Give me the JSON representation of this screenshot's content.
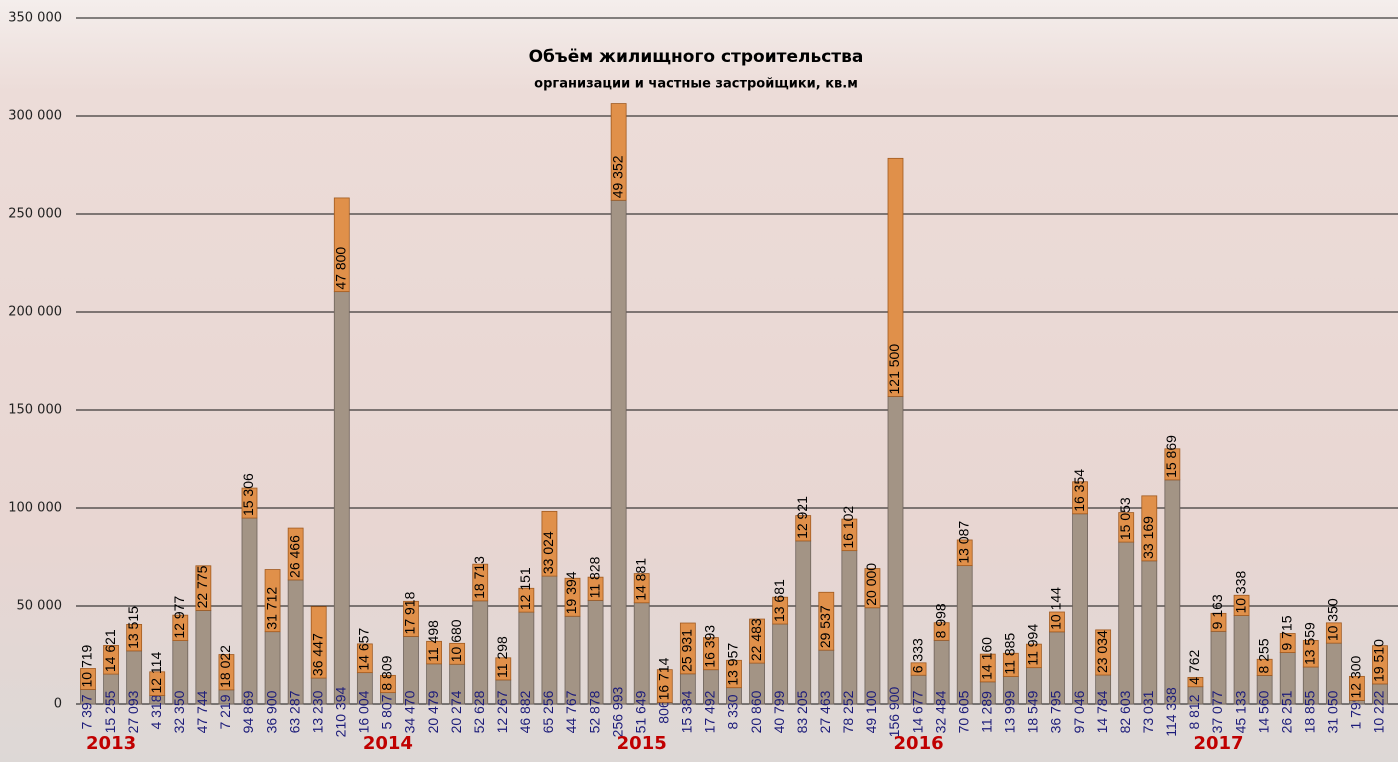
{
  "chart_data": {
    "type": "stacked-bar",
    "title": "Объём жилищного строительства",
    "subtitle": "организации и частные застройщики, кв.м",
    "categories": [
      null,
      "2013",
      null,
      null,
      null,
      null,
      null,
      null,
      null,
      null,
      null,
      null,
      null,
      "2014",
      null,
      null,
      null,
      null,
      null,
      null,
      null,
      null,
      null,
      null,
      "2015",
      null,
      null,
      null,
      null,
      null,
      null,
      null,
      null,
      null,
      null,
      null,
      "2016",
      null,
      null,
      null,
      null,
      null,
      null,
      null,
      null,
      null,
      null,
      null,
      null,
      "2017",
      null,
      null,
      null,
      null,
      null,
      null,
      null
    ],
    "series": [
      {
        "color": "#a39485",
        "label_color": "#1c1c7a",
        "values": [
          7397,
          15255,
          27093,
          4318,
          32350,
          47744,
          7219,
          94869,
          36900,
          63287,
          13230,
          210394,
          16004,
          5807,
          34470,
          20479,
          20274,
          52628,
          12267,
          46882,
          65256,
          44767,
          52878,
          256993,
          51649,
          806,
          15384,
          17492,
          8330,
          20860,
          40799,
          83205,
          27463,
          78252,
          49100,
          156900,
          14677,
          32484,
          70605,
          11289,
          13999,
          18549,
          36795,
          97046,
          14784,
          82603,
          73031,
          114338,
          8812,
          37077,
          45133,
          14560,
          26251,
          18855,
          31050,
          1799,
          10222
        ],
        "value_labels": [
          "7 397",
          "15 255",
          "27 093",
          "4 318",
          "32 350",
          "47 744",
          "7 219",
          "94 869",
          "36 900",
          "63 287",
          "13 230",
          "210 394",
          "16 004",
          "5 807",
          "34 470",
          "20 479",
          "20 274",
          "52 628",
          "12 267",
          "46 882",
          "65 256",
          "44 767",
          "52 878",
          "256 993",
          "51 649",
          "806",
          "15 384",
          "17 492",
          "8 330",
          "20 860",
          "40 799",
          "83 205",
          "27 463",
          "78 252",
          "49 100",
          "156 900",
          "14 677",
          "32 484",
          "70 605",
          "11 289",
          "13 999",
          "18 549",
          "36 795",
          "97 046",
          "14 784",
          "82 603",
          "73 031",
          "114 338",
          "8 812",
          "37 077",
          "45 133",
          "14 560",
          "26 251",
          "18 855",
          "31 050",
          "1 799",
          "10 222"
        ]
      },
      {
        "color": "#e0904a",
        "label_color": "#000000",
        "values": [
          10719,
          14621,
          13515,
          12114,
          12977,
          22775,
          18022,
          15306,
          31712,
          26466,
          36447,
          47800,
          14657,
          8809,
          17918,
          11498,
          10680,
          18713,
          11298,
          12151,
          33024,
          19394,
          11828,
          49352,
          14881,
          16714,
          25931,
          16393,
          13957,
          22483,
          13681,
          12921,
          29537,
          16102,
          20000,
          121500,
          6333,
          8998,
          13087,
          14160,
          11885,
          11994,
          10144,
          16354,
          23034,
          15053,
          33169,
          15869,
          4762,
          9163,
          10338,
          8255,
          9715,
          13559,
          10350,
          12300,
          19510
        ],
        "value_labels": [
          "10 719",
          "14 621",
          "13 515",
          "12 114",
          "12 977",
          "22 775",
          "18 022",
          "15 306",
          "31 712",
          "26 466",
          "36 447",
          "47 800",
          "14 657",
          "8 809",
          "17 918",
          "11 498",
          "10 680",
          "18 713",
          "11 298",
          "12 151",
          "33 024",
          "19 394",
          "11 828",
          "49 352",
          "14 881",
          "16 714",
          "25 931",
          "16 393",
          "13 957",
          "22 483",
          "13 681",
          "12 921",
          "29 537",
          "16 102",
          "20 000",
          "121 500",
          "6 333",
          "8 998",
          "13 087",
          "14 160",
          "11 885",
          "11 994",
          "10 144",
          "16 354",
          "23 034",
          "15 053",
          "33 169",
          "15 869",
          "4 762",
          "9 163",
          "10 338",
          "8 255",
          "9 715",
          "13 559",
          "10 350",
          "12 300",
          "19 510"
        ]
      }
    ],
    "ylim": [
      0,
      350000
    ],
    "yticks": [
      0,
      {
        "value": 50000,
        "label": "50 000"
      },
      {
        "value": 100000,
        "label": "100 000"
      },
      {
        "value": 150000,
        "label": "150 000"
      },
      {
        "value": 200000,
        "label": "200 000"
      },
      {
        "value": 250000,
        "label": "250 000"
      },
      {
        "value": 300000,
        "label": "300 000"
      },
      {
        "value": 350000,
        "label": "350 000"
      }
    ],
    "grid": true,
    "year_color": "#c00000"
  }
}
